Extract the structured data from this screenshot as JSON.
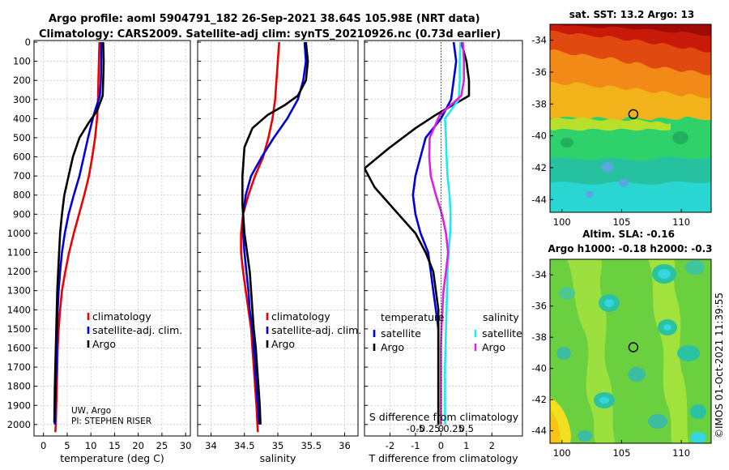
{
  "header": {
    "line1": "Argo profile: aoml 5904791_182 26-Sep-2021 38.64S 105.98E (NRT data)",
    "line2": "Climatology: CARS2009. Satellite-adj clim: synTS_20210926.nc (0.73d earlier)"
  },
  "colors": {
    "climatology": "#ee0000",
    "satellite_adj": "#0000dd",
    "argo": "#000000",
    "satellite_salinity": "#22e6f0",
    "argo_salinity": "#e020e0"
  },
  "chart_data": [
    {
      "type": "line",
      "name": "temperature-profile",
      "xlabel": "temperature (deg C)",
      "ylabel": "",
      "xlim": [
        -2,
        31
      ],
      "ylim": [
        2060,
        0
      ],
      "xticks": [
        0,
        5,
        10,
        15,
        20,
        25,
        30
      ],
      "yticks": [
        0,
        100,
        200,
        300,
        400,
        500,
        600,
        700,
        800,
        900,
        1000,
        1100,
        1200,
        1300,
        1400,
        1500,
        1600,
        1700,
        1800,
        1900,
        2000
      ],
      "legend": [
        "climatology",
        "satellite-adj. clim.",
        "Argo"
      ],
      "legend_position": "lower-right",
      "annotation_lines": [
        "UW, Argo",
        "PI: STEPHEN RISER"
      ],
      "series": [
        {
          "name": "climatology",
          "color": "#ee0000",
          "x": [
            11.8,
            11.7,
            11.6,
            11.5,
            11.3,
            10.9,
            10.3,
            9.6,
            8.6,
            7.5,
            6.4,
            5.4,
            4.6,
            3.9,
            3.5,
            3.2,
            3.0,
            2.9,
            2.8,
            2.7,
            2.6,
            2.5
          ],
          "y": [
            0,
            100,
            200,
            300,
            400,
            500,
            600,
            700,
            800,
            900,
            1000,
            1100,
            1200,
            1300,
            1400,
            1500,
            1600,
            1700,
            1800,
            1900,
            2000,
            2040
          ]
        },
        {
          "name": "satellite-adj. clim.",
          "color": "#0000dd",
          "x": [
            12.2,
            12.2,
            12.1,
            11.9,
            10.6,
            9.4,
            8.5,
            7.6,
            6.4,
            5.3,
            4.5,
            3.9,
            3.5,
            3.2,
            3.0,
            2.9,
            2.8,
            2.7,
            2.6,
            2.5,
            2.4
          ],
          "y": [
            0,
            100,
            200,
            280,
            380,
            500,
            600,
            700,
            800,
            900,
            1000,
            1100,
            1200,
            1300,
            1400,
            1500,
            1600,
            1700,
            1800,
            1900,
            2000
          ]
        },
        {
          "name": "Argo",
          "color": "#000000",
          "x": [
            12.6,
            12.7,
            12.6,
            12.5,
            11.3,
            9.6,
            7.6,
            6.2,
            5.3,
            4.4,
            3.9,
            3.5,
            3.3,
            3.1,
            2.9,
            2.8,
            2.7,
            2.6,
            2.5,
            2.4,
            2.3
          ],
          "y": [
            0,
            100,
            200,
            280,
            360,
            420,
            500,
            600,
            700,
            800,
            900,
            1000,
            1100,
            1200,
            1300,
            1400,
            1500,
            1600,
            1700,
            1800,
            1990
          ]
        }
      ]
    },
    {
      "type": "line",
      "name": "salinity-profile",
      "xlabel": "salinity",
      "ylabel": "",
      "xlim": [
        33.8,
        36.2
      ],
      "ylim": [
        2060,
        0
      ],
      "xticks": [
        34,
        34.5,
        35,
        35.5,
        36
      ],
      "xtick_labels": [
        "34",
        "34.5",
        "35",
        "35.5",
        "36"
      ],
      "legend": [
        "climatology",
        "satellite-adj. clim.",
        "Argo"
      ],
      "legend_position": "lower-right",
      "series": [
        {
          "name": "climatology",
          "color": "#ee0000",
          "x": [
            35.02,
            35.0,
            34.98,
            34.96,
            34.92,
            34.86,
            34.78,
            34.66,
            34.56,
            34.48,
            34.45,
            34.45,
            34.48,
            34.52,
            34.56,
            34.6,
            34.62,
            34.64,
            34.66,
            34.68,
            34.7
          ],
          "y": [
            0,
            100,
            200,
            300,
            400,
            500,
            600,
            700,
            800,
            900,
            1000,
            1100,
            1200,
            1300,
            1400,
            1500,
            1600,
            1700,
            1800,
            1900,
            2040
          ]
        },
        {
          "name": "satellite-adj. clim.",
          "color": "#0000dd",
          "x": [
            35.4,
            35.42,
            35.38,
            35.3,
            35.14,
            34.94,
            34.76,
            34.6,
            34.52,
            34.48,
            34.48,
            34.5,
            34.53,
            34.56,
            34.58,
            34.62,
            34.64,
            34.66,
            34.68,
            34.7,
            34.72
          ],
          "y": [
            0,
            100,
            200,
            300,
            400,
            500,
            600,
            700,
            800,
            900,
            1000,
            1100,
            1200,
            1300,
            1400,
            1500,
            1600,
            1700,
            1800,
            1900,
            2000
          ]
        },
        {
          "name": "Argo",
          "color": "#000000",
          "x": [
            35.42,
            35.45,
            35.42,
            35.3,
            35.1,
            34.85,
            34.62,
            34.5,
            34.47,
            34.47,
            34.5,
            34.54,
            34.58,
            34.6,
            34.62,
            34.64,
            34.67,
            34.69,
            34.71,
            34.73,
            34.74
          ],
          "y": [
            0,
            100,
            200,
            280,
            330,
            380,
            450,
            550,
            700,
            850,
            1000,
            1100,
            1200,
            1300,
            1400,
            1500,
            1600,
            1700,
            1800,
            1900,
            2000
          ]
        }
      ]
    },
    {
      "type": "line",
      "name": "difference-profile",
      "xlabel": "T difference from climatology",
      "top_xlabel": "S difference from climatology",
      "ylabel": "",
      "xlim": [
        -3,
        3.2
      ],
      "ylim": [
        2060,
        0
      ],
      "xticks": [
        -2,
        -1,
        0,
        1,
        2
      ],
      "top_xticks": [
        -1,
        -0.5,
        0,
        0.5,
        1
      ],
      "top_xtick_labels": [
        "-0.5",
        "-0.25",
        "0",
        "0.25",
        "0.5"
      ],
      "legend_left_title": "temperature",
      "legend_right_title": "salinity",
      "legend": [
        "satellite",
        "Argo",
        "satellite",
        "Argo"
      ],
      "legend_position": "lower-center",
      "series": [
        {
          "name": "satellite",
          "color": "#0000dd",
          "x": [
            0.5,
            0.6,
            0.5,
            0.4,
            0.0,
            -0.6,
            -0.8,
            -1.0,
            -1.1,
            -1.0,
            -0.8,
            -0.5,
            -0.4,
            -0.3,
            -0.2,
            -0.1,
            -0.1,
            -0.1,
            -0.1,
            -0.1,
            -0.1
          ],
          "y": [
            0,
            100,
            200,
            300,
            400,
            500,
            600,
            700,
            800,
            900,
            1000,
            1100,
            1200,
            1300,
            1400,
            1500,
            1600,
            1700,
            1800,
            1900,
            2000
          ]
        },
        {
          "name": "Argo",
          "color": "#000000",
          "x": [
            0.8,
            1.0,
            1.1,
            1.1,
            -0.2,
            -1.0,
            -2.0,
            -3.0,
            -2.6,
            -1.8,
            -1.0,
            -0.6,
            -0.3,
            -0.2,
            -0.1,
            -0.1,
            -0.1,
            -0.1,
            -0.1,
            -0.1,
            -0.1
          ],
          "y": [
            0,
            100,
            200,
            280,
            380,
            450,
            550,
            660,
            760,
            880,
            1000,
            1100,
            1200,
            1300,
            1400,
            1500,
            1600,
            1700,
            1800,
            1900,
            2000
          ]
        },
        {
          "name": "satellite",
          "color": "#22e6f0",
          "x": [
            0.76,
            0.74,
            0.74,
            0.7,
            0.16,
            0.2,
            0.22,
            0.26,
            0.34,
            0.38,
            0.36,
            0.3,
            0.26,
            0.24,
            0.22,
            0.2,
            0.18,
            0.16,
            0.16,
            0.16,
            0.16
          ],
          "y": [
            0,
            100,
            200,
            300,
            400,
            500,
            600,
            700,
            800,
            900,
            1000,
            1100,
            1200,
            1300,
            1400,
            1500,
            1600,
            1700,
            1800,
            1900,
            2000
          ]
        },
        {
          "name": "Argo",
          "color": "#e020e0",
          "x": [
            0.86,
            0.9,
            0.9,
            0.8,
            -0.04,
            -0.44,
            -0.46,
            -0.4,
            -0.2,
            0.04,
            0.2,
            0.28,
            0.2,
            0.1,
            0.06,
            0.02,
            0.0,
            0.0,
            0.0,
            0.0,
            0.0
          ],
          "y": [
            0,
            100,
            200,
            280,
            380,
            500,
            600,
            700,
            800,
            900,
            1000,
            1100,
            1200,
            1300,
            1400,
            1500,
            1600,
            1700,
            1800,
            1900,
            2000
          ]
        }
      ]
    },
    {
      "type": "heatmap",
      "name": "sst-map",
      "title": "sat. SST: 13.2 Argo: 13",
      "xticks": [
        100,
        105,
        110
      ],
      "yticks": [
        -34,
        -36,
        -38,
        -40,
        -42,
        -44
      ],
      "xlim": [
        99,
        112.5
      ],
      "ylim": [
        -44.8,
        -33
      ],
      "marker": {
        "lon": 105.98,
        "lat": -38.64
      }
    },
    {
      "type": "heatmap",
      "name": "sla-map",
      "title_line1": "Altim. SLA: -0.16",
      "title_line2": "Argo h1000: -0.18 h2000: -0.3",
      "xticks": [
        100,
        105,
        110
      ],
      "yticks": [
        -34,
        -36,
        -38,
        -40,
        -42,
        -44
      ],
      "xlim": [
        99,
        112.5
      ],
      "ylim": [
        -44.8,
        -33
      ],
      "marker": {
        "lon": 105.98,
        "lat": -38.64
      }
    }
  ],
  "footer": {
    "stamp": "©IMOS 01-Oct-2021 11:39:55"
  }
}
